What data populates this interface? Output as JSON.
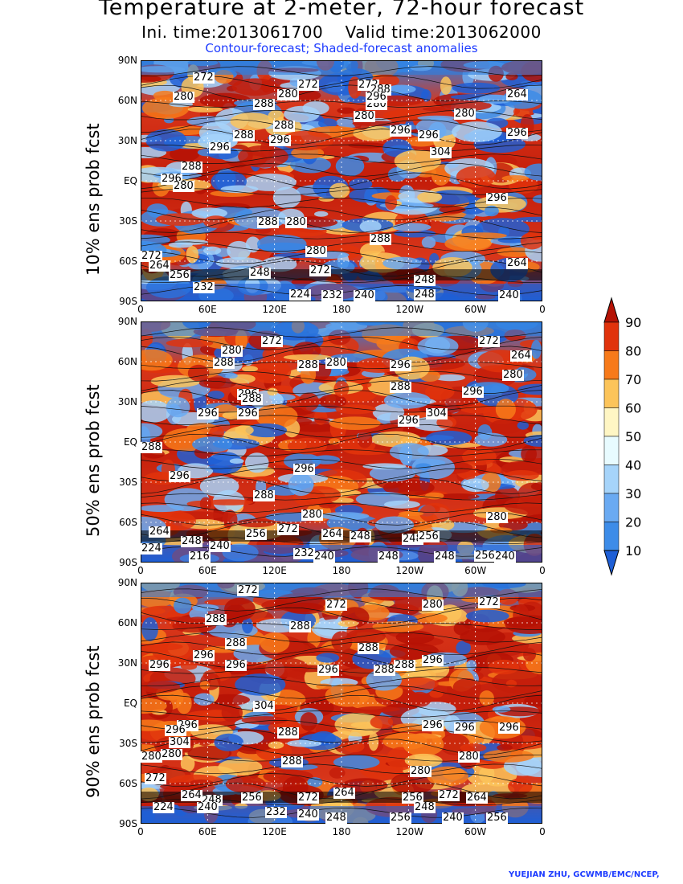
{
  "title": {
    "main": "Temperature at 2-meter, 72-hour forecast",
    "times": "Ini. time:2013061700    Valid time:2013062000",
    "subtitle": "Contour-forecast; Shaded-forecast anomalies"
  },
  "axes": {
    "lat_ticks": [
      "90N",
      "60N",
      "30N",
      "EQ",
      "30S",
      "60S",
      "90S"
    ],
    "lon_ticks": [
      "0",
      "60E",
      "120E",
      "180",
      "120W",
      "60W",
      "0"
    ]
  },
  "panels": [
    {
      "label": "10% ens prob fcst",
      "contour_labels": [
        "272",
        "280",
        "272",
        "280",
        "288",
        "272",
        "264",
        "288",
        "280",
        "296",
        "280",
        "288",
        "296",
        "280",
        "288",
        "296",
        "296",
        "296",
        "304",
        "296",
        "288",
        "296",
        "296",
        "280",
        "288",
        "288",
        "280",
        "280",
        "272",
        "264",
        "256",
        "248",
        "264",
        "272",
        "248",
        "224",
        "232",
        "240",
        "248",
        "240",
        "232"
      ]
    },
    {
      "label": "50% ens prob fcst",
      "contour_labels": [
        "272",
        "280",
        "272",
        "264",
        "288",
        "280",
        "288",
        "296",
        "296",
        "280",
        "288",
        "296",
        "296",
        "304",
        "296",
        "288",
        "296",
        "288",
        "296",
        "296",
        "288",
        "280",
        "280",
        "264",
        "248",
        "240",
        "256",
        "272",
        "264",
        "248",
        "256",
        "248",
        "224",
        "216",
        "232",
        "240",
        "248",
        "248",
        "256",
        "240"
      ]
    },
    {
      "label": "90% ens prob fcst",
      "contour_labels": [
        "272",
        "288",
        "272",
        "280",
        "288",
        "272",
        "288",
        "296",
        "296",
        "296",
        "296",
        "288",
        "304",
        "296",
        "296",
        "304",
        "296",
        "288",
        "296",
        "296",
        "296",
        "288",
        "280",
        "280",
        "288",
        "288",
        "280",
        "280",
        "272",
        "264",
        "248",
        "240",
        "256",
        "272",
        "264",
        "256",
        "248",
        "272",
        "264",
        "224",
        "232",
        "240",
        "248",
        "256",
        "256",
        "240"
      ]
    }
  ],
  "colorbar": {
    "labels": [
      "10",
      "20",
      "30",
      "40",
      "50",
      "60",
      "70",
      "80",
      "90"
    ],
    "colors": [
      "#1e5fd6",
      "#3d8ce8",
      "#6aaaf2",
      "#a6d4fa",
      "#e8fbff",
      "#fff6c4",
      "#fcc45a",
      "#f77a1a",
      "#e0330c",
      "#b51205"
    ]
  },
  "credit": "YUEJIAN ZHU, GCWMB/EMC/NCEP,"
}
